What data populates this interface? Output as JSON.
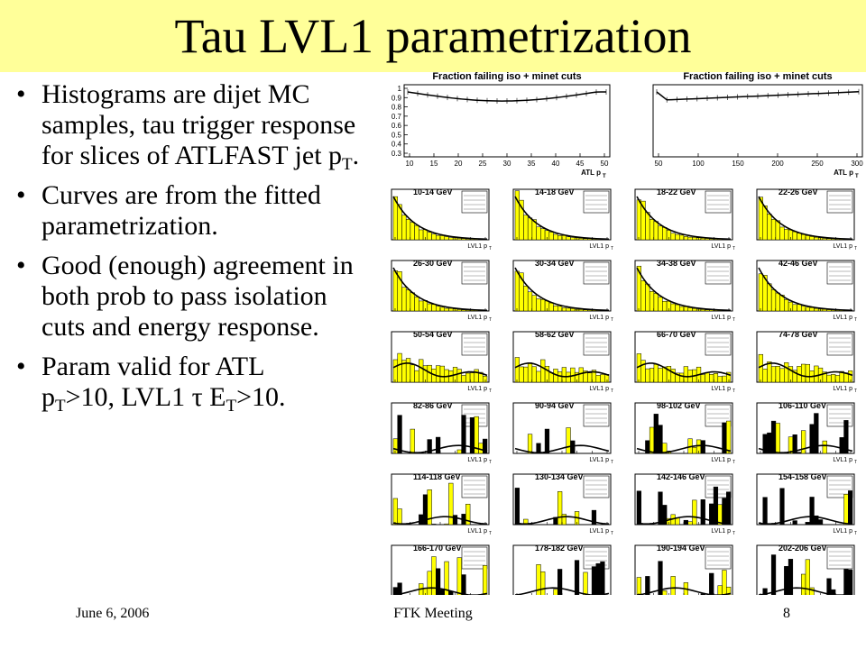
{
  "slide": {
    "title": "Tau LVL1 parametrization",
    "bullets": [
      {
        "before": "Histograms are dijet MC samples, tau trigger response for slices of ATLFAST jet p",
        "sub": "T",
        "after": "."
      },
      {
        "text": "Curves are from the fitted parametrization."
      },
      {
        "text": "Good (enough) agreement in both prob to pass isolation cuts and energy response."
      },
      {
        "line1": "Param valid for ATL",
        "p_main": "p",
        "p_sub": "T",
        "mid": ">10, LVL1 ",
        "tau": "τ",
        "e_main": " E",
        "e_sub": "T",
        "tail": ">10."
      }
    ],
    "footer": {
      "date": "June 6, 2006",
      "meeting": "FTK Meeting",
      "page": "8"
    },
    "colors": {
      "title_bg": "#ffff99",
      "hist_fill": "#ffff00"
    }
  },
  "figure": {
    "top_panels": [
      {
        "title": "Fraction failing iso + minet cuts",
        "yticks": [
          "1",
          "0.9",
          "0.8",
          "0.7",
          "0.6",
          "0.5",
          "0.4",
          "0.3"
        ],
        "xticks": [
          "10",
          "15",
          "20",
          "25",
          "30",
          "35",
          "40",
          "45",
          "50"
        ],
        "xlabel": "ATL p",
        "xlabel_sub": "T"
      },
      {
        "title": "Fraction failing iso + minet cuts",
        "yticks": [],
        "xticks": [
          "50",
          "100",
          "150",
          "200",
          "250",
          "300"
        ],
        "xlabel": "ATL p",
        "xlabel_sub": "T"
      }
    ],
    "grid_titles": [
      "10-14 GeV",
      "14-18 GeV",
      "18-22 GeV",
      "22-26 GeV",
      "26-30 GeV",
      "30-34 GeV",
      "34-38 GeV",
      "42-46 GeV",
      "50-54 GeV",
      "58-62 GeV",
      "66-70 GeV",
      "74-78 GeV",
      "82-86 GeV",
      "90-94 GeV",
      "98-102 GeV",
      "106-110 GeV",
      "114-118 GeV",
      "130-134 GeV",
      "142-146 GeV",
      "154-158 GeV",
      "166-170 GeV",
      "178-182 GeV",
      "190-194 GeV",
      "202-206 GeV"
    ],
    "grid_xlabel": "LVL1 p",
    "grid_xlabel_sub": "T"
  }
}
